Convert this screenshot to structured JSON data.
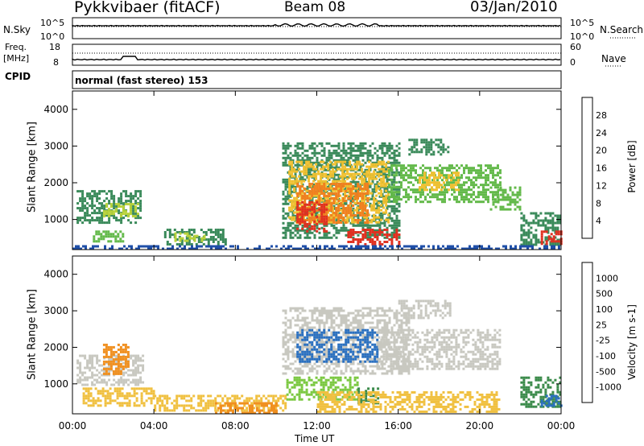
{
  "header": {
    "radar": "Pykkvibaer (fitACF)",
    "beam": "Beam 08",
    "date": "03/Jan/2010"
  },
  "strip_panels": {
    "nsky": {
      "label": "N.Sky",
      "ticks": [
        "10^5",
        "10^0"
      ],
      "right_label": "N.Search",
      "right_ticks": [
        "10^5",
        "10^0"
      ]
    },
    "freq": {
      "label_line1": "Freq.",
      "label_line2": "[MHz]",
      "ticks": [
        "18",
        "8"
      ],
      "right_label": "Nave",
      "right_ticks": [
        "60",
        "0"
      ]
    },
    "cpid": {
      "label": "CPID",
      "value": "normal (fast stereo) 153"
    }
  },
  "colors": {
    "power_scale": [
      "#0000ff",
      "#1f4fa8",
      "#3a8a5a",
      "#63b94a",
      "#b8d23a",
      "#f0c030",
      "#f08020",
      "#e03020"
    ],
    "velocity_scale": [
      "#1030c0",
      "#2a70c0",
      "#3a8a4a",
      "#7ac840",
      "#c8c8c0",
      "#f0c040",
      "#f09020",
      "#f05020",
      "#e01010"
    ]
  },
  "chart_data": [
    {
      "type": "heatmap",
      "title": "Power",
      "ylabel": "Slant Range [km]",
      "xlabel": "",
      "ylim": [
        180,
        4500
      ],
      "yticks": [
        "4000",
        "3000",
        "2000",
        "1000"
      ],
      "colorbar_label": "Power [dB]",
      "colorbar_ticks": [
        "28",
        "24",
        "20",
        "16",
        "12",
        "8",
        "4"
      ],
      "regions": [
        {
          "t0": 0.2,
          "t1": 3.3,
          "r0": 900,
          "r1": 1800,
          "level": 2
        },
        {
          "t0": 1.5,
          "t1": 3.2,
          "r0": 1100,
          "r1": 1450,
          "level": 4
        },
        {
          "t0": 1.0,
          "t1": 2.5,
          "r0": 400,
          "r1": 700,
          "level": 3
        },
        {
          "t0": 4.5,
          "t1": 7.5,
          "r0": 300,
          "r1": 750,
          "level": 2
        },
        {
          "t0": 5.0,
          "t1": 6.5,
          "r0": 450,
          "r1": 650,
          "level": 4
        },
        {
          "t0": 10.3,
          "t1": 16.0,
          "r0": 500,
          "r1": 3100,
          "level": 2
        },
        {
          "t0": 10.6,
          "t1": 15.5,
          "r0": 900,
          "r1": 2600,
          "level": 5
        },
        {
          "t0": 11.0,
          "t1": 14.5,
          "r0": 900,
          "r1": 2000,
          "level": 6
        },
        {
          "t0": 11.0,
          "t1": 12.5,
          "r0": 700,
          "r1": 1500,
          "level": 7
        },
        {
          "t0": 13.5,
          "t1": 16.0,
          "r0": 350,
          "r1": 750,
          "level": 7
        },
        {
          "t0": 15.5,
          "t1": 21.0,
          "r0": 1500,
          "r1": 2500,
          "level": 3
        },
        {
          "t0": 17.0,
          "t1": 19.0,
          "r0": 1800,
          "r1": 2300,
          "level": 5
        },
        {
          "t0": 16.5,
          "t1": 18.5,
          "r0": 2800,
          "r1": 3200,
          "level": 2
        },
        {
          "t0": 20.5,
          "t1": 22.0,
          "r0": 1300,
          "r1": 1900,
          "level": 3
        },
        {
          "t0": 22.0,
          "t1": 24.0,
          "r0": 300,
          "r1": 1200,
          "level": 2
        },
        {
          "t0": 23.0,
          "t1": 24.0,
          "r0": 350,
          "r1": 700,
          "level": 7
        },
        {
          "t0": 0.0,
          "t1": 24.0,
          "r0": 180,
          "r1": 300,
          "level": 1
        }
      ]
    },
    {
      "type": "heatmap",
      "title": "Velocity",
      "ylabel": "Slant Range [km]",
      "xlabel": "Time UT",
      "ylim": [
        180,
        4500
      ],
      "yticks": [
        "4000",
        "3000",
        "2000",
        "1000"
      ],
      "colorbar_label": "Velocity [m s-1]",
      "colorbar_ticks": [
        "1000",
        "500",
        "100",
        "25",
        "-25",
        "-100",
        "-500",
        "-1000"
      ],
      "xticks": [
        "00:00",
        "04:00",
        "08:00",
        "12:00",
        "16:00",
        "20:00",
        "00:00"
      ],
      "regions": [
        {
          "t0": 0.2,
          "t1": 3.5,
          "r0": 1000,
          "r1": 1800,
          "level": 4
        },
        {
          "t0": 1.5,
          "t1": 2.8,
          "r0": 1300,
          "r1": 2100,
          "level": 6
        },
        {
          "t0": 0.5,
          "t1": 4.0,
          "r0": 400,
          "r1": 900,
          "level": 5
        },
        {
          "t0": 4.0,
          "t1": 10.5,
          "r0": 250,
          "r1": 700,
          "level": 5
        },
        {
          "t0": 7.0,
          "t1": 10.0,
          "r0": 200,
          "r1": 500,
          "level": 6
        },
        {
          "t0": 10.3,
          "t1": 16.5,
          "r0": 1300,
          "r1": 3100,
          "level": 4
        },
        {
          "t0": 11.0,
          "t1": 15.0,
          "r0": 1600,
          "r1": 2500,
          "level": 1
        },
        {
          "t0": 10.5,
          "t1": 14.0,
          "r0": 600,
          "r1": 1200,
          "level": 3
        },
        {
          "t0": 14.0,
          "t1": 15.0,
          "r0": 500,
          "r1": 900,
          "level": 2
        },
        {
          "t0": 15.0,
          "t1": 21.0,
          "r0": 1400,
          "r1": 2500,
          "level": 4
        },
        {
          "t0": 16.0,
          "t1": 18.5,
          "r0": 2800,
          "r1": 3300,
          "level": 4
        },
        {
          "t0": 12.0,
          "t1": 21.0,
          "r0": 250,
          "r1": 800,
          "level": 5
        },
        {
          "t0": 22.0,
          "t1": 24.0,
          "r0": 400,
          "r1": 1200,
          "level": 2
        },
        {
          "t0": 23.0,
          "t1": 24.0,
          "r0": 400,
          "r1": 700,
          "level": 1
        }
      ]
    }
  ]
}
